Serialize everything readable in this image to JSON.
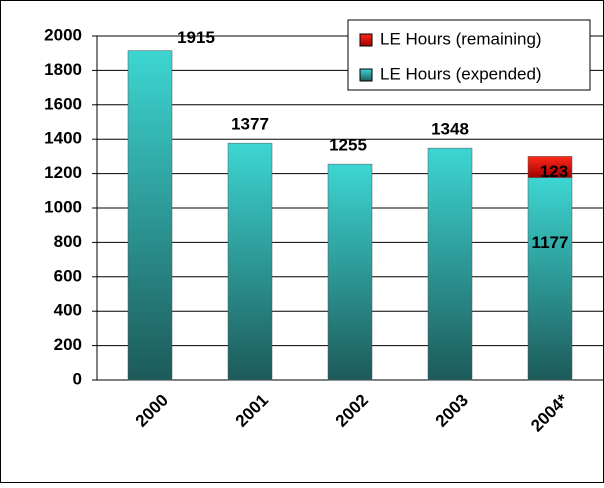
{
  "chart_data": {
    "type": "bar",
    "stacked": true,
    "categories": [
      "2000",
      "2001",
      "2002",
      "2003",
      "2004*"
    ],
    "series": [
      {
        "name": "LE Hours (expended)",
        "color": "#2fbdb9",
        "values": [
          1915,
          1377,
          1255,
          1348,
          1177
        ]
      },
      {
        "name": "LE Hours (remaining)",
        "color": "#d40000",
        "values": [
          null,
          null,
          null,
          null,
          123
        ]
      }
    ],
    "ylim": [
      0,
      2000
    ],
    "yticks": [
      0,
      200,
      400,
      600,
      800,
      1000,
      1200,
      1400,
      1600,
      1800,
      2000
    ],
    "grid": true,
    "legend": "top-right"
  }
}
